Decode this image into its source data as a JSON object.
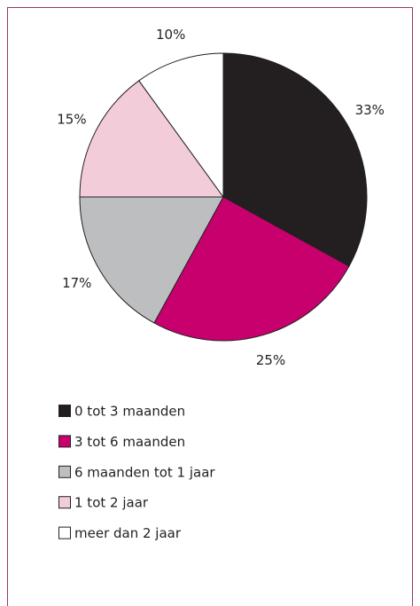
{
  "chart_data": {
    "type": "pie",
    "categories": [
      "0 tot 3 maanden",
      "3 tot 6 maanden",
      "6 maanden tot 1 jaar",
      "1 tot 2 jaar",
      "meer dan 2 jaar"
    ],
    "values": [
      33,
      25,
      17,
      15,
      10
    ],
    "value_labels": [
      "33%",
      "25%",
      "17%",
      "15%",
      "10%"
    ],
    "colors": [
      "#231f20",
      "#c8006e",
      "#bcbec0",
      "#f2cdd9",
      "#ffffff"
    ]
  }
}
